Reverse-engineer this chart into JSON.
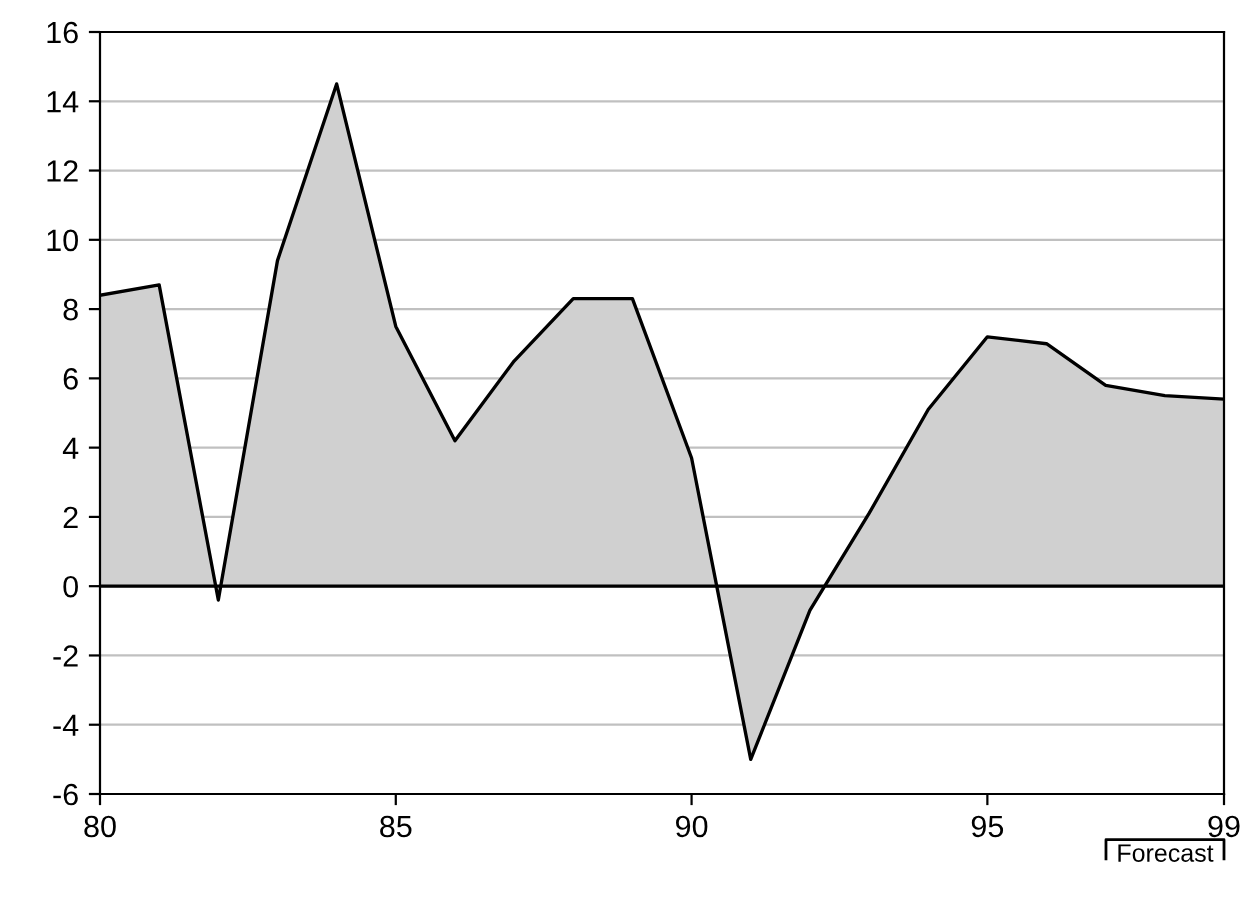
{
  "chart_data": {
    "type": "area",
    "x": [
      80,
      81,
      82,
      83,
      84,
      85,
      86,
      87,
      88,
      89,
      90,
      91,
      92,
      93,
      94,
      95,
      96,
      97,
      98,
      99
    ],
    "series": [
      {
        "color": "#d0d0d0",
        "values": [
          8.4,
          8.7,
          -0.4,
          9.4,
          14.5,
          7.5,
          4.2,
          6.5,
          8.3,
          8.3,
          3.7,
          -5.0,
          -0.7,
          2.1,
          5.1,
          7.2,
          7.0,
          5.8,
          5.5,
          5.4
        ]
      }
    ],
    "xlim": [
      80,
      99
    ],
    "xticks": [
      80,
      85,
      90,
      95,
      99
    ],
    "ylim": [
      -6,
      16
    ],
    "yticks": [
      -6,
      -4,
      -2,
      0,
      2,
      4,
      6,
      8,
      10,
      12,
      14,
      16
    ],
    "grid": "y",
    "legend": false,
    "ref_lines": [
      {
        "axis": "y",
        "value": 0,
        "color": "#000000"
      }
    ],
    "annotations": [
      "Forecast"
    ]
  }
}
